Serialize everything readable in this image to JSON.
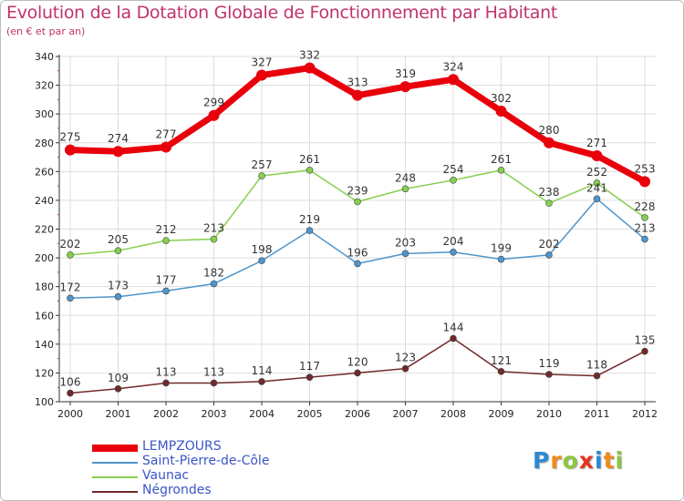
{
  "title": "Evolution de la Dotation Globale de Fonctionnement par Habitant",
  "subtitle": "(en € et par an)",
  "logo_text": "Proxiti",
  "colors": {
    "title": "#c0336e",
    "axis": "#333333",
    "grid": "#dddddd",
    "logo": [
      "#2b8ad4",
      "#f08a1c",
      "#8cc63f",
      "#e8321e",
      "#2b8ad4",
      "#f08a1c",
      "#8cc63f"
    ]
  },
  "chart_data": {
    "type": "line",
    "title": "Evolution de la Dotation Globale de Fonctionnement par Habitant",
    "subtitle": "(en € et par an)",
    "xlabel": "",
    "ylabel": "",
    "x": [
      "2000",
      "2001",
      "2002",
      "2003",
      "2004",
      "2005",
      "2006",
      "2007",
      "2008",
      "2009",
      "2010",
      "2011",
      "2012"
    ],
    "ylim": [
      100,
      340
    ],
    "yticks": [
      100,
      120,
      140,
      160,
      180,
      200,
      220,
      240,
      260,
      280,
      300,
      320,
      340
    ],
    "grid": true,
    "legend": "bottom-left",
    "series": [
      {
        "name": "LEMPZOURS",
        "color": "#e8000b",
        "values": [
          275,
          274,
          277,
          299,
          327,
          332,
          313,
          319,
          324,
          302,
          280,
          271,
          253
        ]
      },
      {
        "name": "Saint-Pierre-de-Côle",
        "color": "#4f95cc",
        "values": [
          172,
          173,
          177,
          182,
          198,
          219,
          196,
          203,
          204,
          199,
          202,
          241,
          213
        ]
      },
      {
        "name": "Vaunac",
        "color": "#86cf4e",
        "values": [
          202,
          205,
          212,
          213,
          257,
          261,
          239,
          248,
          254,
          261,
          238,
          252,
          228
        ]
      },
      {
        "name": "Négrondes",
        "color": "#702a2a",
        "values": [
          106,
          109,
          113,
          113,
          114,
          117,
          120,
          123,
          144,
          121,
          119,
          118,
          135
        ]
      }
    ]
  }
}
